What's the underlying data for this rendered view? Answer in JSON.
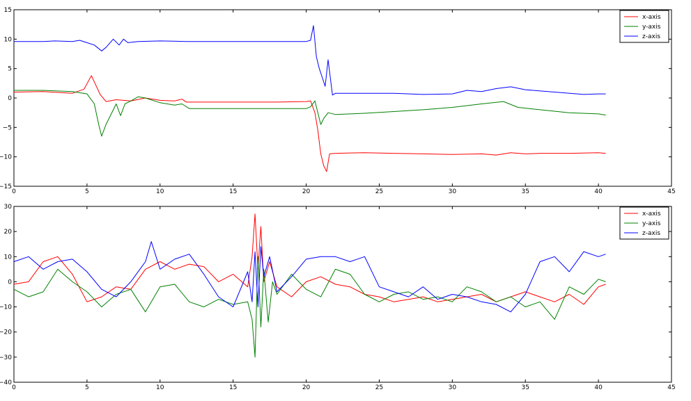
{
  "colors": {
    "x": "#ff0000",
    "y": "#008000",
    "z": "#0000ff"
  },
  "chart_data": [
    {
      "type": "line",
      "xlim": [
        0,
        45
      ],
      "ylim": [
        -15,
        15
      ],
      "xticks": [
        "0",
        "5",
        "10",
        "15",
        "20",
        "25",
        "30",
        "35",
        "40",
        "45"
      ],
      "yticks": [
        "15",
        "10",
        "5",
        "0",
        "−5",
        "−10",
        "−15"
      ],
      "grid": false,
      "legend_position": "top-right",
      "series": [
        {
          "name": "x-axis",
          "color": "#ff0000",
          "x": [
            0,
            2,
            4,
            4.8,
            5.3,
            5.6,
            5.9,
            6.3,
            7,
            8,
            9,
            10,
            11,
            11.5,
            11.8,
            12,
            14,
            16,
            18,
            20,
            20.3,
            20.6,
            20.8,
            21.0,
            21.2,
            21.4,
            21.6,
            22,
            24,
            26,
            28,
            30,
            32,
            33,
            34,
            35,
            36,
            38,
            40,
            40.5
          ],
          "y": [
            1.0,
            1.1,
            0.8,
            1.5,
            3.8,
            2.2,
            0.6,
            -0.6,
            -0.3,
            -0.5,
            0.0,
            -0.4,
            -0.5,
            -0.2,
            -0.7,
            -0.7,
            -0.7,
            -0.7,
            -0.7,
            -0.6,
            -0.5,
            -2.5,
            -5.5,
            -9.5,
            -11.5,
            -12.5,
            -9.5,
            -9.4,
            -9.3,
            -9.4,
            -9.5,
            -9.6,
            -9.5,
            -9.7,
            -9.3,
            -9.5,
            -9.4,
            -9.4,
            -9.3,
            -9.4
          ]
        },
        {
          "name": "y-axis",
          "color": "#008000",
          "x": [
            0,
            2,
            4,
            5,
            5.5,
            5.8,
            6.0,
            6.3,
            6.6,
            7,
            7.3,
            7.6,
            8,
            8.5,
            9,
            10,
            11,
            11.5,
            12,
            14,
            16,
            18,
            20,
            20.3,
            20.6,
            20.8,
            21.0,
            21.2,
            21.5,
            22,
            24,
            26,
            28,
            30,
            32,
            33.5,
            34.5,
            36,
            38,
            40,
            40.5
          ],
          "y": [
            1.3,
            1.3,
            1.1,
            0.7,
            -1.0,
            -4.5,
            -6.5,
            -4.5,
            -3.0,
            -1.0,
            -3.0,
            -1.0,
            -0.5,
            0.2,
            0.0,
            -0.8,
            -1.2,
            -1.0,
            -1.8,
            -1.8,
            -1.8,
            -1.8,
            -1.8,
            -1.5,
            -0.5,
            -2.5,
            -4.5,
            -3.5,
            -2.5,
            -2.8,
            -2.6,
            -2.3,
            -2.0,
            -1.6,
            -1.0,
            -0.6,
            -1.6,
            -2.0,
            -2.5,
            -2.7,
            -2.9
          ]
        },
        {
          "name": "z-axis",
          "color": "#0000ff",
          "x": [
            0,
            2,
            2.8,
            4,
            4.5,
            5.0,
            5.5,
            6.0,
            6.3,
            6.8,
            7.2,
            7.5,
            7.8,
            8.5,
            10,
            11.8,
            12,
            14,
            16,
            18,
            20,
            20.3,
            20.5,
            20.7,
            20.9,
            21.1,
            21.3,
            21.5,
            21.8,
            22,
            24,
            26,
            28,
            30,
            31,
            32,
            33,
            34,
            35,
            37,
            39,
            40,
            40.5
          ],
          "y": [
            9.6,
            9.6,
            9.7,
            9.6,
            9.8,
            9.4,
            9.0,
            8.0,
            8.6,
            10.0,
            9.0,
            10.0,
            9.4,
            9.6,
            9.7,
            9.6,
            9.6,
            9.6,
            9.6,
            9.6,
            9.6,
            9.8,
            12.3,
            7.0,
            5.0,
            3.5,
            2.0,
            6.5,
            0.5,
            0.8,
            0.8,
            0.8,
            0.6,
            0.7,
            1.3,
            1.1,
            1.6,
            1.9,
            1.4,
            1.0,
            0.6,
            0.7,
            0.7
          ]
        }
      ]
    },
    {
      "type": "line",
      "xlim": [
        0,
        45
      ],
      "ylim": [
        -40,
        30
      ],
      "xticks": [
        "0",
        "5",
        "10",
        "15",
        "20",
        "25",
        "30",
        "35",
        "40",
        "45"
      ],
      "yticks": [
        "30",
        "20",
        "10",
        "0",
        "−10",
        "−20",
        "−30",
        "−40"
      ],
      "grid": false,
      "legend_position": "top-right",
      "series": [
        {
          "name": "x-axis",
          "color": "#ff0000",
          "x": [
            0,
            1,
            2,
            3,
            4,
            5,
            6,
            7,
            8,
            9,
            10,
            11,
            12,
            13,
            14,
            15,
            16,
            16.3,
            16.5,
            16.7,
            16.9,
            17.1,
            17.5,
            18,
            19,
            20,
            21,
            22,
            23,
            24,
            25,
            26,
            27,
            28,
            29,
            30,
            31,
            32,
            33,
            34,
            35,
            36,
            37,
            38,
            39,
            40,
            40.5
          ],
          "y": [
            -1,
            0,
            8,
            10,
            3,
            -8,
            -6,
            -2,
            -3,
            5,
            8,
            5,
            7,
            6,
            0,
            3,
            -2,
            10,
            27,
            5,
            22,
            0,
            8,
            -2,
            -6,
            0,
            2,
            -1,
            -2,
            -5,
            -6,
            -8,
            -7,
            -6,
            -8,
            -7,
            -6,
            -5,
            -8,
            -6,
            -4,
            -6,
            -8,
            -5,
            -9,
            -2,
            -1
          ]
        },
        {
          "name": "y-axis",
          "color": "#008000",
          "x": [
            0,
            1,
            2,
            3,
            4,
            5,
            6,
            7,
            8,
            9,
            10,
            11,
            12,
            13,
            14,
            15,
            16,
            16.3,
            16.5,
            16.7,
            16.9,
            17.1,
            17.4,
            17.7,
            18,
            19,
            20,
            21,
            22,
            23,
            24,
            25,
            26,
            27,
            28,
            29,
            30,
            31,
            32,
            33,
            34,
            35,
            36,
            37,
            38,
            39,
            40,
            40.5
          ],
          "y": [
            -3,
            -6,
            -4,
            5,
            0,
            -4,
            -10,
            -5,
            -3,
            -12,
            -2,
            -1,
            -8,
            -10,
            -7,
            -9,
            -8,
            -15,
            -30,
            10,
            -18,
            5,
            -16,
            0,
            -5,
            3,
            -3,
            -6,
            5,
            3,
            -5,
            -8,
            -5,
            -4,
            -7,
            -6,
            -8,
            -2,
            -4,
            -8,
            -6,
            -10,
            -8,
            -15,
            -2,
            -5,
            1,
            0
          ]
        },
        {
          "name": "z-axis",
          "color": "#0000ff",
          "x": [
            0,
            1,
            2,
            3,
            4,
            5,
            6,
            7,
            8,
            9,
            9.4,
            10,
            11,
            12,
            13,
            14,
            15,
            16,
            16.3,
            16.5,
            16.7,
            16.9,
            17.1,
            17.5,
            18,
            19,
            20,
            21,
            22,
            23,
            24,
            25,
            26,
            27,
            28,
            29,
            30,
            31,
            32,
            33,
            34,
            35,
            36,
            37,
            38,
            39,
            40,
            40.5
          ],
          "y": [
            8,
            10,
            5,
            8,
            9,
            4,
            -3,
            -6,
            0,
            8,
            16,
            5,
            9,
            11,
            3,
            -6,
            -10,
            4,
            -8,
            12,
            -10,
            14,
            2,
            10,
            -4,
            2,
            9,
            10,
            10,
            8,
            10,
            -2,
            -4,
            -6,
            -2,
            -7,
            -5,
            -6,
            -8,
            -9,
            -12,
            -5,
            8,
            10,
            4,
            12,
            10,
            11
          ]
        }
      ]
    }
  ]
}
